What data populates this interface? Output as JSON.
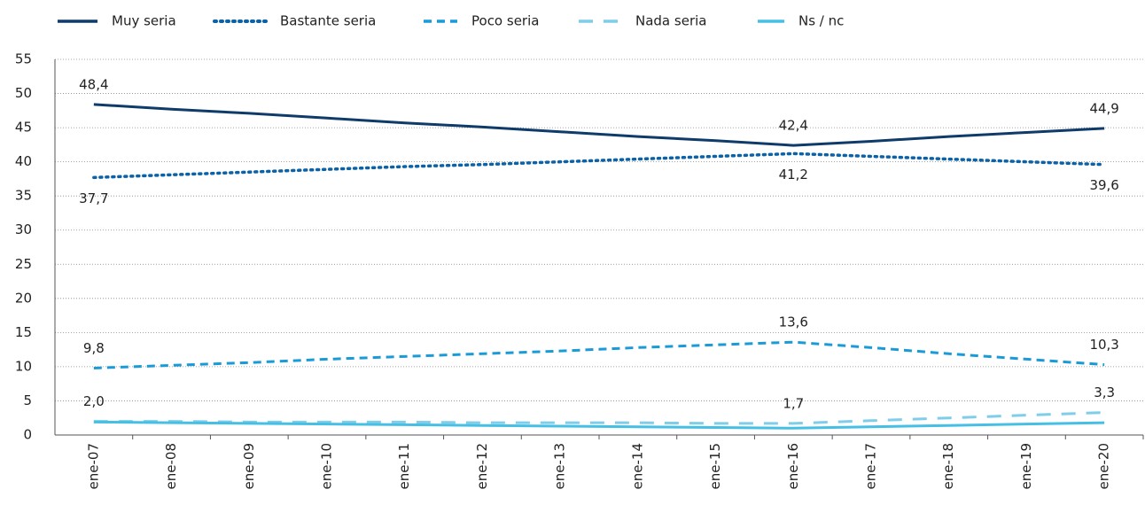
{
  "chart_data": {
    "type": "line",
    "categories": [
      "ene-07",
      "ene-08",
      "ene-09",
      "ene-10",
      "ene-11",
      "ene-12",
      "ene-13",
      "ene-14",
      "ene-15",
      "ene-16",
      "ene-17",
      "ene-18",
      "ene-19",
      "ene-20"
    ],
    "series": [
      {
        "name": "Muy seria",
        "color": "#0f3b6b",
        "line_style": "solid",
        "label_position": "above",
        "values": [
          48.4,
          47.7,
          47.1,
          46.4,
          45.7,
          45.1,
          44.4,
          43.7,
          43.1,
          42.4,
          43.0,
          43.7,
          44.3,
          44.9
        ],
        "value_labels": [
          "48,4",
          null,
          null,
          null,
          null,
          null,
          null,
          null,
          null,
          "42,4",
          null,
          null,
          null,
          "44,9"
        ]
      },
      {
        "name": "Bastante seria",
        "color": "#0b62a8",
        "line_style": "dotted",
        "label_position": "below",
        "values": [
          37.7,
          38.1,
          38.5,
          38.9,
          39.3,
          39.6,
          40.0,
          40.4,
          40.8,
          41.2,
          40.8,
          40.4,
          40.0,
          39.6
        ],
        "value_labels": [
          "37,7",
          null,
          null,
          null,
          null,
          null,
          null,
          null,
          null,
          "41,2",
          null,
          null,
          null,
          "39,6"
        ]
      },
      {
        "name": "Poco seria",
        "color": "#1b9ad8",
        "line_style": "dashed",
        "label_position": "above",
        "values": [
          9.8,
          10.2,
          10.6,
          11.1,
          11.5,
          11.9,
          12.3,
          12.8,
          13.2,
          13.6,
          12.8,
          11.9,
          11.1,
          10.3
        ],
        "value_labels": [
          "9,8",
          null,
          null,
          null,
          null,
          null,
          null,
          null,
          null,
          "13,6",
          null,
          null,
          null,
          "10,3"
        ]
      },
      {
        "name": "Nada seria",
        "color": "#7fcde9",
        "line_style": "longdash",
        "label_position": "above",
        "values": [
          2.0,
          2.0,
          1.9,
          1.9,
          1.9,
          1.8,
          1.8,
          1.8,
          1.7,
          1.7,
          2.1,
          2.5,
          2.9,
          3.3
        ],
        "value_labels": [
          "2,0",
          null,
          null,
          null,
          null,
          null,
          null,
          null,
          null,
          "1,7",
          null,
          null,
          null,
          "3,3"
        ]
      },
      {
        "name": "Ns / nc",
        "color": "#45bfe4",
        "line_style": "solid",
        "label_position": "above",
        "values": [
          1.9,
          1.8,
          1.7,
          1.6,
          1.5,
          1.4,
          1.3,
          1.2,
          1.1,
          1.0,
          1.2,
          1.4,
          1.6,
          1.8
        ]
      }
    ],
    "ylim": [
      0,
      55
    ],
    "yticks": [
      0,
      5,
      10,
      15,
      20,
      25,
      30,
      35,
      40,
      45,
      50,
      55
    ],
    "grid": true,
    "legend": "top"
  }
}
